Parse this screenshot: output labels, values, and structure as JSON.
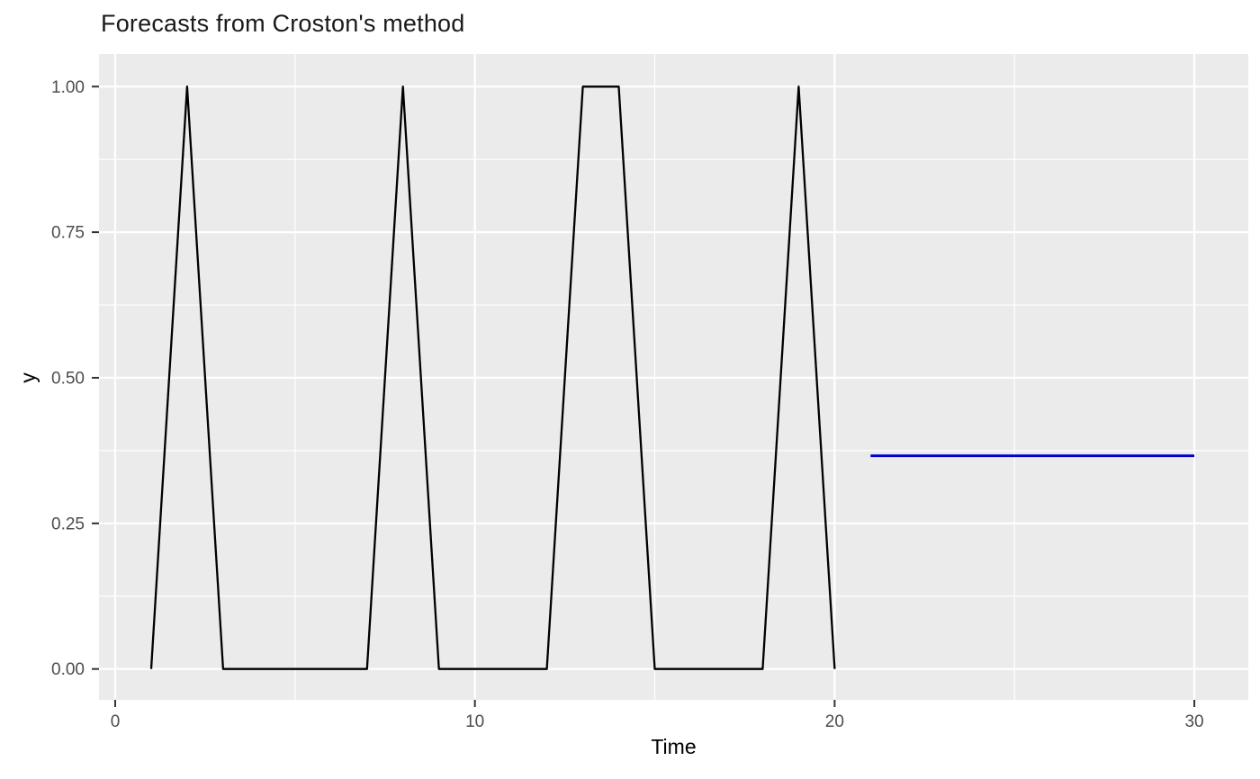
{
  "chart_data": {
    "type": "line",
    "title": "Forecasts from Croston's method",
    "xlabel": "Time",
    "ylabel": "y",
    "xlim": [
      -0.45,
      31.5
    ],
    "ylim": [
      -0.053,
      1.056
    ],
    "grid": "on",
    "legend": "none",
    "x_ticks": {
      "major": [
        0,
        10,
        20,
        30
      ],
      "minor": [
        5,
        15,
        25
      ],
      "labels": [
        "0",
        "10",
        "20",
        "30"
      ]
    },
    "y_ticks": {
      "major": [
        0,
        0.25,
        0.5,
        0.75,
        1.0
      ],
      "minor": [
        0.125,
        0.375,
        0.625,
        0.875
      ],
      "labels": [
        "0.00",
        "0.25",
        "0.50",
        "0.75",
        "1.00"
      ]
    },
    "series": [
      {
        "name": "observed",
        "color": "#000000",
        "width": 2.3,
        "x": [
          1,
          2,
          3,
          4,
          5,
          6,
          7,
          8,
          9,
          10,
          11,
          12,
          13,
          14,
          15,
          16,
          17,
          18,
          19,
          20
        ],
        "y": [
          0,
          1,
          0,
          0,
          0,
          0,
          0,
          1,
          0,
          0,
          0,
          0,
          1,
          1,
          0,
          0,
          0,
          0,
          1,
          0
        ]
      },
      {
        "name": "forecast-mean",
        "color": "#0000CC",
        "width": 2.8,
        "x": [
          21,
          30
        ],
        "y": [
          0.366,
          0.366
        ]
      }
    ],
    "colors": {
      "panel_background": "#EBEBEB",
      "grid_major": "#FFFFFF",
      "grid_minor": "#FFFFFF",
      "tick_mark": "#333333",
      "tick_text": "#4D4D4D",
      "title_text": "#1A1A1A",
      "axis_title_text": "#000000",
      "observed_line": "#000000",
      "forecast_line": "#0000CC"
    }
  }
}
